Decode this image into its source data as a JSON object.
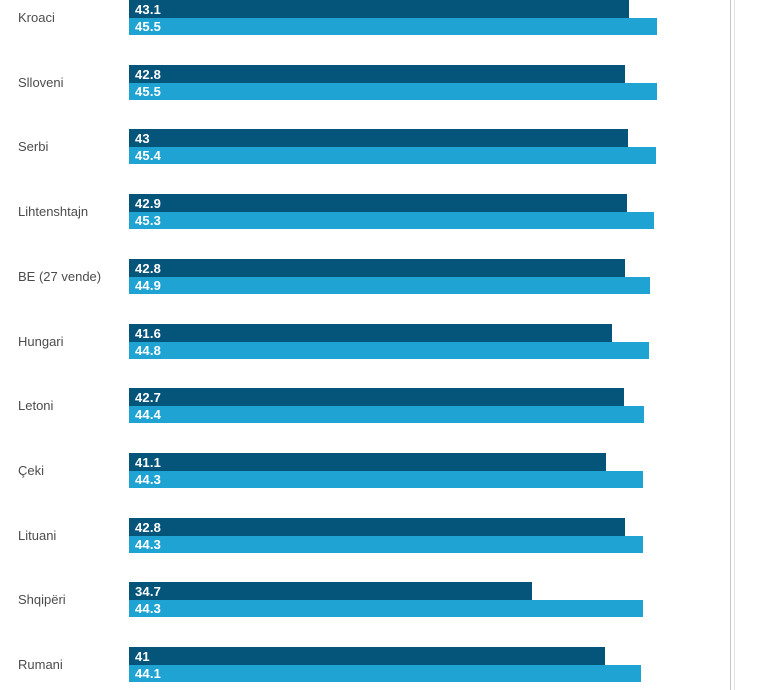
{
  "chart_data": {
    "type": "bar",
    "orientation": "horizontal",
    "categories": [
      "Kroaci",
      "Slloveni",
      "Serbi",
      "Lihtenshtajn",
      "BE (27 vende)",
      "Hungari",
      "Letoni",
      "Çeki",
      "Lituani",
      "Shqipëri",
      "Rumani"
    ],
    "series": [
      {
        "name": "series-dark",
        "color": "#05547a",
        "values": [
          43.1,
          42.8,
          43,
          42.9,
          42.8,
          41.6,
          42.7,
          41.1,
          42.8,
          34.7,
          41
        ]
      },
      {
        "name": "series-light",
        "color": "#1fa3d3",
        "values": [
          45.5,
          45.5,
          45.4,
          45.3,
          44.9,
          44.8,
          44.4,
          44.3,
          44.3,
          44.3,
          44.1
        ]
      }
    ],
    "display_values": [
      [
        "43.1",
        "45.5"
      ],
      [
        "42.8",
        "45.5"
      ],
      [
        "43",
        "45.4"
      ],
      [
        "42.9",
        "45.3"
      ],
      [
        "42.8",
        "44.9"
      ],
      [
        "41.6",
        "44.8"
      ],
      [
        "42.7",
        "44.4"
      ],
      [
        "41.1",
        "44.3"
      ],
      [
        "42.8",
        "44.3"
      ],
      [
        "34.7",
        "44.3"
      ],
      [
        "41",
        "44.1"
      ]
    ],
    "xlim": [
      0,
      52
    ],
    "value_labels_position": "inside-start",
    "legend": "none",
    "grid": "off"
  },
  "colors": {
    "background": "#ffffff",
    "category_label": "#4c4c4c",
    "value_label": "#ffffff",
    "divider_dark": "#c5c5c5",
    "divider_light": "#e2e2e2"
  }
}
